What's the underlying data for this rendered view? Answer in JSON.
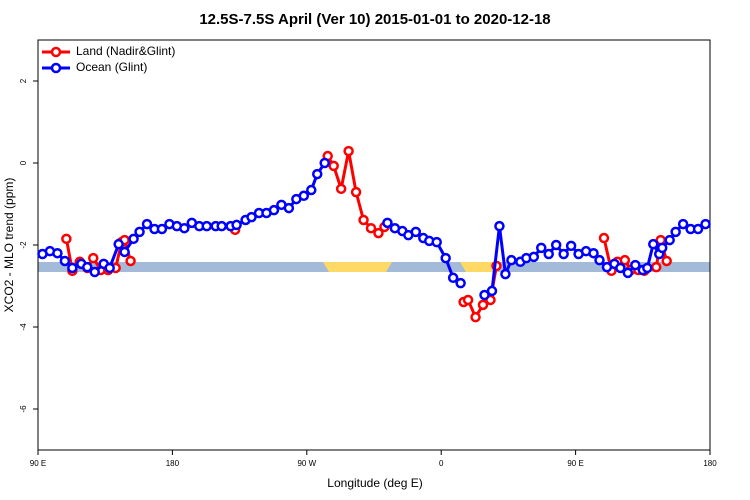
{
  "chart_data": {
    "type": "line",
    "title": "12.5S-7.5S April (Ver 10)   2015-01-01 to 2020-12-18",
    "xlabel": "Longitude (deg E)",
    "ylabel": "XCO2 - MLO trend (ppm)",
    "xlim": [
      90,
      540
    ],
    "ylim": [
      -7,
      3
    ],
    "xticks": [
      {
        "value": 90,
        "label": "90 E"
      },
      {
        "value": 180,
        "label": "180"
      },
      {
        "value": 270,
        "label": "90 W"
      },
      {
        "value": 360,
        "label": "0"
      },
      {
        "value": 450,
        "label": "90 E"
      },
      {
        "value": 540,
        "label": "180"
      }
    ],
    "yticks": [
      -6,
      -4,
      -2,
      0,
      2
    ],
    "legend": "top-left",
    "series": [
      {
        "name": "Land (Nadir&Glint)",
        "color": "#ff0000",
        "x": [
          109,
          113,
          118,
          123,
          127,
          132,
          137,
          142,
          146,
          148,
          152,
          190,
          222,
          250,
          284,
          288,
          293,
          298,
          303,
          308,
          313,
          318,
          322,
          340,
          375,
          378,
          383,
          388,
          393,
          397,
          430,
          469,
          474,
          478,
          483,
          487,
          492,
          496,
          504,
          507,
          511
        ],
        "values": [
          -1.85,
          -2.63,
          -2.41,
          -2.56,
          -2.32,
          -2.61,
          -2.61,
          -2.56,
          -1.93,
          -1.88,
          -2.39,
          null,
          -1.63,
          null,
          0.17,
          -0.07,
          -0.63,
          0.29,
          -0.71,
          -1.39,
          -1.59,
          -1.71,
          -1.56,
          null,
          -3.39,
          -3.34,
          -3.76,
          -3.46,
          -3.34,
          -2.51,
          null,
          -1.83,
          -2.63,
          -2.41,
          -2.37,
          -2.61,
          -2.61,
          -2.63,
          -2.54,
          -1.88,
          -2.39
        ]
      },
      {
        "name": "Ocean (Glint)",
        "color": "#0000ff",
        "x": [
          93,
          98,
          103,
          108,
          113,
          119,
          123,
          128,
          134,
          138,
          144,
          148,
          154,
          158,
          163,
          168,
          173,
          178,
          183,
          188,
          193,
          198,
          203,
          209,
          213,
          219,
          223,
          229,
          233,
          238,
          243,
          248,
          253,
          258,
          263,
          268,
          273,
          277,
          282,
          303,
          324,
          329,
          334,
          338,
          343,
          348,
          352,
          357,
          363,
          368,
          373,
          380,
          389,
          394,
          399,
          403,
          407,
          413,
          417,
          422,
          427,
          432,
          437,
          442,
          447,
          452,
          457,
          462,
          466,
          471,
          476,
          480,
          485,
          490,
          495,
          498,
          502,
          506,
          508,
          513,
          517,
          522,
          527,
          532,
          537
        ],
        "values": [
          -2.22,
          -2.15,
          -2.2,
          -2.39,
          -2.56,
          -2.46,
          -2.54,
          -2.66,
          -2.46,
          -2.56,
          -1.98,
          -2.17,
          -1.85,
          -1.68,
          -1.49,
          -1.61,
          -1.61,
          -1.49,
          -1.54,
          -1.59,
          -1.46,
          -1.54,
          -1.54,
          -1.54,
          -1.54,
          -1.54,
          -1.51,
          -1.39,
          -1.32,
          -1.22,
          -1.22,
          -1.15,
          -1.02,
          -1.1,
          -0.88,
          -0.8,
          -0.66,
          -0.27,
          0,
          null,
          -1.46,
          -1.59,
          -1.66,
          -1.76,
          -1.68,
          -1.83,
          -1.9,
          -1.93,
          -2.32,
          -2.8,
          -2.93,
          null,
          -3.22,
          -3.12,
          -1.54,
          -2.71,
          -2.37,
          -2.41,
          -2.32,
          -2.29,
          -2.07,
          -2.22,
          -2.0,
          -2.22,
          -2.02,
          -2.22,
          -2.15,
          -2.2,
          -2.37,
          -2.54,
          -2.46,
          -2.56,
          -2.68,
          -2.49,
          -2.61,
          -2.56,
          -1.98,
          -2.22,
          -2.07,
          -1.88,
          -1.68,
          -1.49,
          -1.61,
          -1.61,
          -1.49
        ]
      }
    ]
  }
}
